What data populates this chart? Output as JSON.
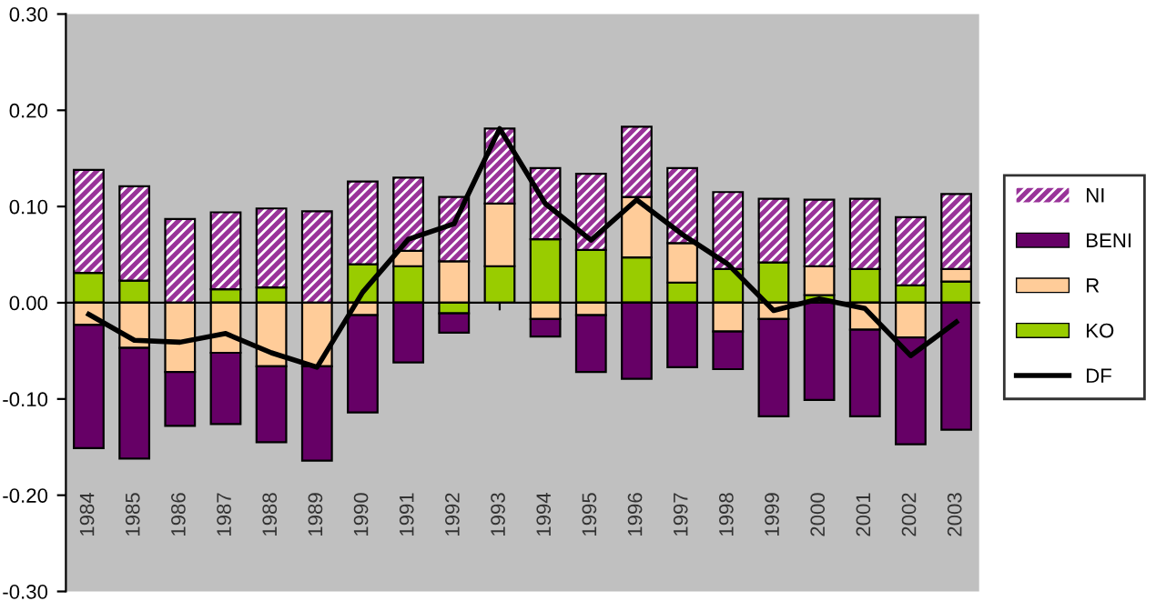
{
  "chart_data": {
    "type": "bar",
    "stacked": true,
    "categories": [
      "1984",
      "1985",
      "1986",
      "1987",
      "1988",
      "1989",
      "1990",
      "1991",
      "1992",
      "1993",
      "1994",
      "1995",
      "1996",
      "1997",
      "1998",
      "1999",
      "2000",
      "2001",
      "2002",
      "2003"
    ],
    "series": [
      {
        "name": "KO",
        "color": "#99cc00",
        "values": [
          0.031,
          0.023,
          0,
          0.014,
          0.016,
          0,
          0.04,
          0.038,
          -0.011,
          0.038,
          0.066,
          0.055,
          0.047,
          0.021,
          0.035,
          0.042,
          0.008,
          0.035,
          0.018,
          0.022
        ]
      },
      {
        "name": "R",
        "color": "#ffcc99",
        "values": [
          -0.023,
          -0.047,
          -0.072,
          -0.052,
          -0.066,
          -0.066,
          -0.013,
          0.016,
          0.043,
          0.065,
          -0.017,
          -0.013,
          0.063,
          0.041,
          -0.03,
          -0.017,
          0.03,
          -0.028,
          -0.036,
          0.013
        ]
      },
      {
        "name": "BENI",
        "color": "#660066",
        "values": [
          -0.128,
          -0.115,
          -0.056,
          -0.074,
          -0.079,
          -0.098,
          -0.101,
          -0.062,
          -0.02,
          0,
          -0.018,
          -0.059,
          -0.079,
          -0.067,
          -0.039,
          -0.101,
          -0.101,
          -0.09,
          -0.111,
          -0.132
        ]
      },
      {
        "name": "NI",
        "color": "#993399",
        "values": [
          0.107,
          0.098,
          0.087,
          0.08,
          0.082,
          0.095,
          0.086,
          0.076,
          0.067,
          0.078,
          0.074,
          0.079,
          0.073,
          0.078,
          0.08,
          0.066,
          0.069,
          0.073,
          0.071,
          0.078
        ]
      },
      {
        "name": "DF",
        "type": "line",
        "color": "#000000",
        "values": [
          -0.012,
          -0.039,
          -0.041,
          -0.032,
          -0.052,
          -0.067,
          0.011,
          0.066,
          0.082,
          0.181,
          0.103,
          0.065,
          0.107,
          0.071,
          0.04,
          -0.008,
          0.004,
          -0.006,
          -0.055,
          -0.02
        ]
      }
    ],
    "ylim": [
      -0.3,
      0.3
    ],
    "yticks": [
      {
        "value": -0.3,
        "label": "-0.30"
      },
      {
        "value": -0.2,
        "label": "-0.20"
      },
      {
        "value": -0.1,
        "label": "-0.10"
      },
      {
        "value": 0,
        "label": "0.00"
      },
      {
        "value": 0.1,
        "label": "0.10"
      },
      {
        "value": 0.2,
        "label": "0.20"
      },
      {
        "value": 0.3,
        "label": "0.30"
      }
    ],
    "legend": "right",
    "marker": "none",
    "line_style": "solid"
  }
}
